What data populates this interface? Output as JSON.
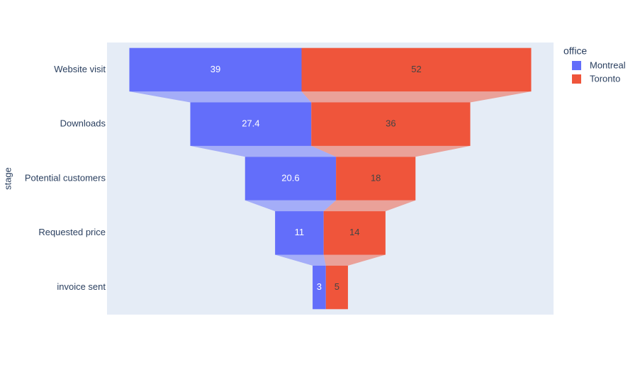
{
  "chart_data": {
    "type": "funnel",
    "categories": [
      "Website visit",
      "Downloads",
      "Potential customers",
      "Requested price",
      "invoice sent"
    ],
    "series": [
      {
        "name": "Montreal",
        "color": "#636efa",
        "values": [
          39,
          27.4,
          20.6,
          11,
          3
        ]
      },
      {
        "name": "Toronto",
        "color": "#ef553b",
        "values": [
          52,
          36,
          18,
          14,
          5
        ]
      }
    ],
    "ylabel": "stage",
    "legend_title": "office",
    "legend": "top-right"
  }
}
